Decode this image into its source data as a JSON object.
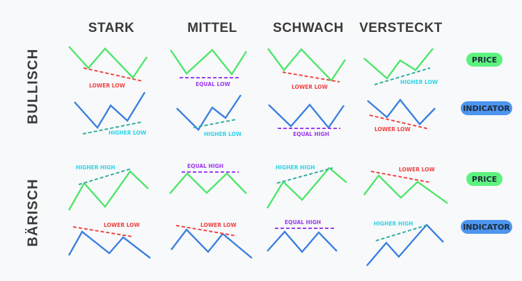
{
  "columns": [
    "STARK",
    "MITTEL",
    "SCHWACH",
    "VERSTECKT"
  ],
  "rows": [
    "BULLISCH",
    "BÄRISCH"
  ],
  "badges": {
    "price": "PRICE",
    "indicator": "INDICATOR"
  },
  "colors": {
    "price_line": "#4ee56a",
    "indicator_line": "#3a7fe0",
    "lower_low": "#ee4444",
    "equal": "#9b3bf0",
    "higher_high_text": "#2ed5e8",
    "higher_line": "#2fae9f",
    "title": "#3a3a3a",
    "price_badge": "#5df27e",
    "indicator_badge": "#4d95ef"
  },
  "cells": {
    "bullish_price": [
      "LOWER LOW",
      "EQUAL LOW",
      "LOWER LOW",
      "HIGHER LOW"
    ],
    "bullish_indicator": [
      "HIGHER LOW",
      "HIGHER LOW",
      "EQUAL HIGH",
      "LOWER LOW"
    ],
    "bearish_price": [
      "HIGHER HIGH",
      "EQUAL HIGH",
      "HIGHER HIGH",
      "LOWER LOW"
    ],
    "bearish_indicator": [
      "LOWER LOW",
      "LOWER LOW",
      "EQUAL HIGH",
      "HIGHER HIGH"
    ]
  }
}
